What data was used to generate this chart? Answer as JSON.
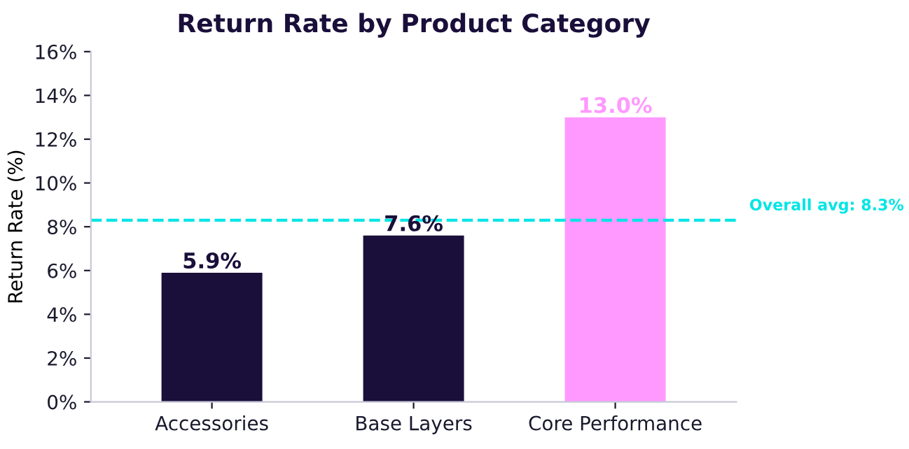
{
  "chart_data": {
    "type": "bar",
    "title": "Return Rate by Product Category",
    "ylabel": "Return Rate (%)",
    "categories": [
      "Accessories",
      "Base Layers",
      "Core Performance"
    ],
    "values": [
      5.9,
      7.6,
      13.0
    ],
    "colors": [
      "#1a0f3a",
      "#1a0f3a",
      "#ff99ff"
    ],
    "value_labels": [
      "5.9%",
      "7.6%",
      "13.0%"
    ],
    "ylim": [
      0,
      16
    ],
    "yticks": [
      {
        "value": 0,
        "label": "0%"
      },
      {
        "value": 2,
        "label": "2%"
      },
      {
        "value": 4,
        "label": "4%"
      },
      {
        "value": 6,
        "label": "6%"
      },
      {
        "value": 8,
        "label": "8%"
      },
      {
        "value": 10,
        "label": "10%"
      },
      {
        "value": 12,
        "label": "12%"
      },
      {
        "value": 14,
        "label": "14%"
      },
      {
        "value": 16,
        "label": "16%"
      }
    ],
    "ref_lines": [
      {
        "axis": "y",
        "value": 8.3,
        "label": "Overall avg: 8.3%",
        "color": "#00e5e5",
        "line_style": "dashed"
      }
    ],
    "grid": false,
    "legend": false
  }
}
